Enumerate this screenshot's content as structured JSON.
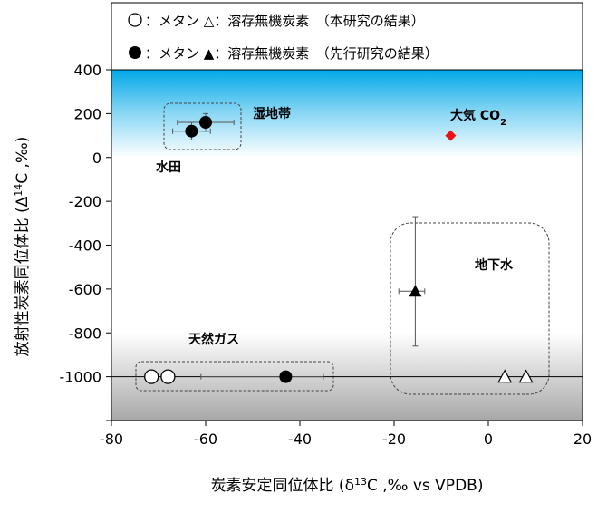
{
  "legend": {
    "row1_text": "：メタン △：溶存無機炭素　（本研究の結果）",
    "row2_text": "：メタン ▲：溶存無機炭素　（先行研究の結果）"
  },
  "annotations": {
    "wetland": "湿地帯",
    "paddy": "水田",
    "atmosphere": "大気 CO",
    "atmosphere_sub": "2",
    "groundwater": "地下水",
    "natural_gas": "天然ガス"
  },
  "chart_data": {
    "type": "scatter",
    "xlabel": "炭素安定同位体比 (δ13C ,‰ vs VPDB)",
    "ylabel": "放射性炭素同位体比 (Δ14C ,‰)",
    "xlim": [
      -80,
      20
    ],
    "ylim": [
      -1200,
      400
    ],
    "x_ticks": [
      -80,
      -60,
      -40,
      -20,
      0,
      20
    ],
    "y_ticks": [
      -1200,
      -1000,
      -800,
      -600,
      -400,
      -200,
      0,
      200,
      400
    ],
    "x_tick_labels": [
      "-80",
      "-60",
      "-40",
      "-20",
      "0",
      "20"
    ],
    "y_tick_labels": [
      "",
      "-1000",
      "-800",
      "-600",
      "-400",
      "-200",
      "0",
      "200",
      "400"
    ],
    "reference_line_y": -1000,
    "background": {
      "top_band": {
        "from": 0,
        "to": 400,
        "color": "#00a8e8"
      },
      "bottom_band": {
        "from": -1200,
        "to": -800,
        "color": "#a8a8a8"
      }
    },
    "series": [
      {
        "name": "メタン（本研究）",
        "marker": "open-circle",
        "points": [
          {
            "x": -71.5,
            "y": -1000
          },
          {
            "x": -68,
            "y": -1000
          }
        ]
      },
      {
        "name": "溶存無機炭素（本研究）",
        "marker": "open-triangle",
        "points": [
          {
            "x": 3.5,
            "y": -1000
          },
          {
            "x": 8,
            "y": -1000
          }
        ]
      },
      {
        "name": "メタン（先行研究）",
        "marker": "filled-circle",
        "points": [
          {
            "x": -60,
            "y": 160,
            "xerr": [
              6,
              6
            ],
            "yerr": [
              40,
              40
            ]
          },
          {
            "x": -63,
            "y": 120,
            "xerr": [
              4,
              4
            ],
            "yerr": [
              40,
              40
            ]
          },
          {
            "x": -43,
            "y": -1000,
            "xerr": [
              18,
              8
            ],
            "yerr": [
              0,
              0
            ]
          }
        ]
      },
      {
        "name": "溶存無機炭素（先行研究）",
        "marker": "filled-triangle",
        "points": [
          {
            "x": -15.5,
            "y": -610,
            "xerr": [
              3.5,
              2
            ],
            "yerr": [
              250,
              340
            ]
          }
        ]
      },
      {
        "name": "大気 CO2",
        "marker": "red-diamond",
        "color": "#ee1111",
        "points": [
          {
            "x": -8,
            "y": 100
          }
        ]
      }
    ]
  }
}
